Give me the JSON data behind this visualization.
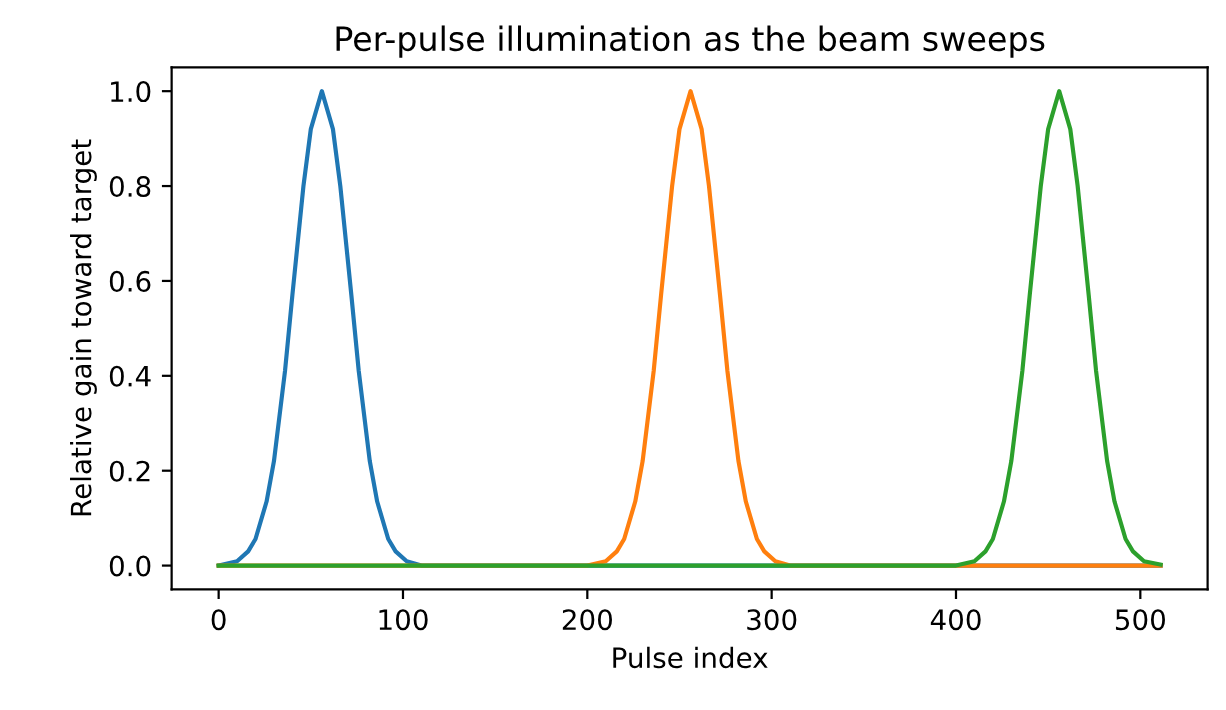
{
  "chart_data": {
    "type": "line",
    "title": "Per-pulse illumination as the beam sweeps",
    "xlabel": "Pulse index",
    "ylabel": "Relative gain toward target",
    "xlim": [
      -25.5,
      536.5
    ],
    "ylim": [
      -0.05,
      1.05
    ],
    "xticks": [
      0,
      100,
      200,
      300,
      400,
      500
    ],
    "yticks": [
      {
        "value": 0,
        "label": "0.0"
      },
      {
        "value": 0.2,
        "label": "0.2"
      },
      {
        "value": 0.4,
        "label": "0.4"
      },
      {
        "value": 0.6,
        "label": "0.6"
      },
      {
        "value": 0.8,
        "label": "0.8"
      },
      {
        "value": 1,
        "label": "1.0"
      }
    ],
    "grid": false,
    "legend": false,
    "series": [
      {
        "color": "#1f77b4",
        "x": [
          0,
          10,
          16,
          20,
          26,
          30,
          36,
          40,
          46,
          50,
          56,
          62,
          66,
          72,
          76,
          82,
          86,
          92,
          96,
          102,
          110,
          511
        ],
        "values": [
          0,
          0.009,
          0.03,
          0.056,
          0.135,
          0.22,
          0.41,
          0.57,
          0.8,
          0.92,
          1,
          0.92,
          0.8,
          0.57,
          0.41,
          0.22,
          0.135,
          0.056,
          0.03,
          0.009,
          0,
          0
        ]
      },
      {
        "color": "#ff7f0e",
        "x": [
          0,
          200,
          210,
          216,
          220,
          226,
          230,
          236,
          240,
          246,
          250,
          256,
          262,
          266,
          272,
          276,
          282,
          286,
          292,
          296,
          302,
          310,
          511
        ],
        "values": [
          0,
          0,
          0.009,
          0.03,
          0.056,
          0.135,
          0.22,
          0.41,
          0.57,
          0.8,
          0.92,
          1,
          0.92,
          0.8,
          0.57,
          0.41,
          0.22,
          0.135,
          0.056,
          0.03,
          0.009,
          0,
          0
        ]
      },
      {
        "color": "#2ca02c",
        "x": [
          0,
          400,
          410,
          416,
          420,
          426,
          430,
          436,
          440,
          446,
          450,
          456,
          462,
          466,
          472,
          476,
          482,
          486,
          492,
          496,
          502,
          511
        ],
        "values": [
          0,
          0,
          0.009,
          0.03,
          0.056,
          0.135,
          0.22,
          0.41,
          0.57,
          0.8,
          0.92,
          1,
          0.92,
          0.8,
          0.57,
          0.41,
          0.22,
          0.135,
          0.056,
          0.03,
          0.009,
          0.002
        ]
      }
    ]
  }
}
